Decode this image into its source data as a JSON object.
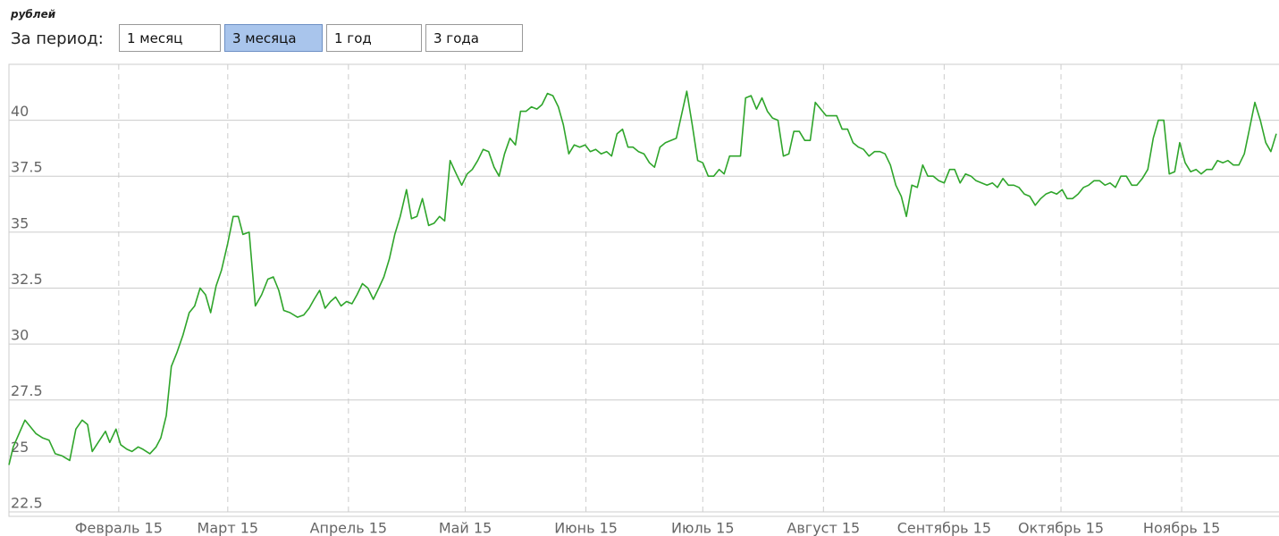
{
  "unit": "рублей",
  "period_label": "За период:",
  "buttons": [
    {
      "label": "1 месяц",
      "active": false
    },
    {
      "label": "3 месяца",
      "active": true
    },
    {
      "label": "1 год",
      "active": false
    },
    {
      "label": "3 года",
      "active": false
    }
  ],
  "chart_data": {
    "type": "line",
    "x": [
      3.8,
      4.9,
      7.9,
      10.7,
      12.5,
      14.1,
      15.7,
      17.5,
      19.4,
      21.0,
      22.6,
      24.0,
      25.2,
      26.7,
      28.6,
      29.7,
      31.3,
      32.5,
      34.1,
      35.4,
      37.0,
      38.2,
      40.0,
      41.6,
      42.8,
      44.2,
      45.5,
      46.9,
      48.5,
      50.1,
      51.5,
      52.9,
      54.3,
      55.6,
      57.0,
      58.4,
      60.0,
      61.4,
      62.7,
      63.9,
      65.5,
      67.1,
      68.7,
      70.3,
      71.7,
      73.1,
      74.4,
      76.0,
      77.9,
      79.5,
      80.9,
      82.2,
      83.6,
      85.0,
      86.4,
      87.7,
      89.1,
      90.5,
      91.9,
      93.2,
      94.6,
      96.0,
      97.4,
      98.8,
      100.1,
      101.5,
      102.9,
      104.3,
      105.9,
      107.2,
      108.6,
      110.0,
      111.6,
      113.0,
      114.4,
      115.7,
      117.1,
      118.7,
      120.1,
      121.5,
      122.8,
      124.2,
      125.6,
      127.0,
      128.4,
      129.7,
      131.1,
      132.5,
      133.9,
      135.2,
      136.6,
      138.0,
      139.4,
      140.7,
      142.1,
      143.5,
      144.9,
      146.2,
      147.6,
      149.0,
      150.4,
      151.8,
      153.1,
      154.5,
      155.9,
      157.3,
      158.6,
      160.0,
      161.4,
      162.8,
      164.1,
      165.5,
      166.9,
      168.3,
      169.6,
      171.0,
      172.4,
      173.8,
      175.2,
      176.5,
      177.9,
      179.3,
      180.7,
      182.0,
      183.4,
      184.8,
      186.2,
      187.5,
      188.9,
      190.3,
      191.7,
      193.0,
      194.4,
      195.8,
      197.2,
      198.6,
      199.9,
      201.3,
      202.7,
      204.1,
      205.4,
      206.8,
      208.2,
      209.6,
      210.9,
      212.3,
      213.7,
      215.1,
      216.4,
      217.8,
      219.2,
      220.6,
      222.0,
      223.3,
      224.7,
      226.1,
      227.5,
      228.8,
      230.2,
      231.6,
      233.0,
      234.3,
      235.7,
      237.1,
      238.5,
      239.8,
      241.2,
      242.6,
      244.0,
      245.4,
      246.7,
      248.1,
      249.5,
      250.9,
      252.2,
      253.6,
      255.0,
      256.4,
      257.7,
      259.1,
      260.5,
      261.9,
      263.2,
      264.6,
      266.0,
      267.4,
      268.8,
      270.1,
      271.5,
      272.9,
      274.3,
      275.6,
      277.0,
      278.4,
      279.8,
      281.1,
      282.5,
      283.9,
      285.3,
      286.6,
      288.0,
      289.4,
      290.8,
      292.2,
      293.5,
      294.9,
      296.3,
      297.7,
      299.0,
      300.4,
      301.8,
      303.2,
      304.5,
      305.9,
      307.3,
      308.7,
      310.0,
      311.4,
      312.8,
      314.2,
      315.6,
      316.9,
      318.3,
      319.7,
      321.1,
      322.4,
      323.8,
      325.2,
      326.6,
      327.9,
      329.3
    ],
    "series": [
      {
        "color": "#2fa52b",
        "values": [
          24.6,
          25.4,
          26.6,
          26.0,
          25.8,
          25.7,
          25.1,
          25.0,
          24.8,
          26.2,
          26.6,
          26.4,
          25.2,
          25.6,
          26.1,
          25.6,
          26.2,
          25.5,
          25.3,
          25.2,
          25.4,
          25.3,
          25.1,
          25.4,
          25.8,
          26.8,
          29.0,
          29.6,
          30.4,
          31.4,
          31.7,
          32.5,
          32.2,
          31.4,
          32.6,
          33.3,
          34.5,
          35.7,
          35.7,
          34.9,
          35.0,
          31.7,
          32.2,
          32.9,
          33.0,
          32.4,
          31.5,
          31.4,
          31.2,
          31.3,
          31.6,
          32.0,
          32.4,
          31.6,
          31.9,
          32.1,
          31.7,
          31.9,
          31.8,
          32.2,
          32.7,
          32.5,
          32.0,
          32.5,
          33.0,
          33.8,
          34.9,
          35.7,
          36.9,
          35.6,
          35.7,
          36.5,
          35.3,
          35.4,
          35.7,
          35.5,
          38.2,
          37.6,
          37.1,
          37.6,
          37.8,
          38.2,
          38.7,
          38.6,
          37.9,
          37.5,
          38.5,
          39.2,
          38.9,
          40.4,
          40.4,
          40.6,
          40.5,
          40.7,
          41.2,
          41.1,
          40.6,
          39.8,
          38.5,
          38.9,
          38.8,
          38.9,
          38.6,
          38.7,
          38.5,
          38.6,
          38.4,
          39.4,
          39.6,
          38.8,
          38.8,
          38.6,
          38.5,
          38.1,
          37.9,
          38.8,
          39.0,
          39.1,
          39.2,
          40.2,
          41.3,
          39.8,
          38.2,
          38.1,
          37.5,
          37.5,
          37.8,
          37.6,
          38.4,
          38.4,
          38.4,
          41.0,
          41.1,
          40.5,
          41.0,
          40.4,
          40.1,
          40.0,
          38.4,
          38.5,
          39.5,
          39.5,
          39.1,
          39.1,
          40.8,
          40.5,
          40.2,
          40.2,
          40.2,
          39.6,
          39.6,
          39.0,
          38.8,
          38.7,
          38.4,
          38.6,
          38.6,
          38.5,
          38.0,
          37.1,
          36.6,
          35.7,
          37.1,
          37.0,
          38.0,
          37.5,
          37.5,
          37.3,
          37.2,
          37.8,
          37.8,
          37.2,
          37.6,
          37.5,
          37.3,
          37.2,
          37.1,
          37.2,
          37.0,
          37.4,
          37.1,
          37.1,
          37.0,
          36.7,
          36.6,
          36.2,
          36.5,
          36.7,
          36.8,
          36.7,
          36.9,
          36.5,
          36.5,
          36.7,
          37.0,
          37.1,
          37.3,
          37.3,
          37.1,
          37.2,
          37.0,
          37.5,
          37.5,
          37.1,
          37.1,
          37.4,
          37.8,
          39.2,
          40.0,
          40.0,
          37.6,
          37.7,
          39.0,
          38.1,
          37.7,
          37.8,
          37.6,
          37.8,
          37.8,
          38.2,
          38.1,
          38.2,
          38.0,
          38.0,
          38.5,
          39.6,
          40.8,
          40.0,
          39.0,
          38.6,
          39.4
        ]
      }
    ],
    "xlim": [
      3.8,
      330
    ],
    "xticks": [
      {
        "value": 32,
        "label": "Февраль 15"
      },
      {
        "value": 60,
        "label": "Март 15"
      },
      {
        "value": 91,
        "label": "Апрель 15"
      },
      {
        "value": 121,
        "label": "Май 15"
      },
      {
        "value": 152,
        "label": "Июнь 15"
      },
      {
        "value": 182,
        "label": "Июль 15"
      },
      {
        "value": 213,
        "label": "Август 15"
      },
      {
        "value": 244,
        "label": "Сентябрь 15"
      },
      {
        "value": 274,
        "label": "Октябрь 15"
      },
      {
        "value": 305,
        "label": "Ноябрь 15"
      }
    ],
    "ylim": [
      22.3,
      42.5
    ],
    "yticks": [
      22.5,
      25,
      27.5,
      30,
      32.5,
      35,
      37.5,
      40
    ],
    "grid": true
  }
}
